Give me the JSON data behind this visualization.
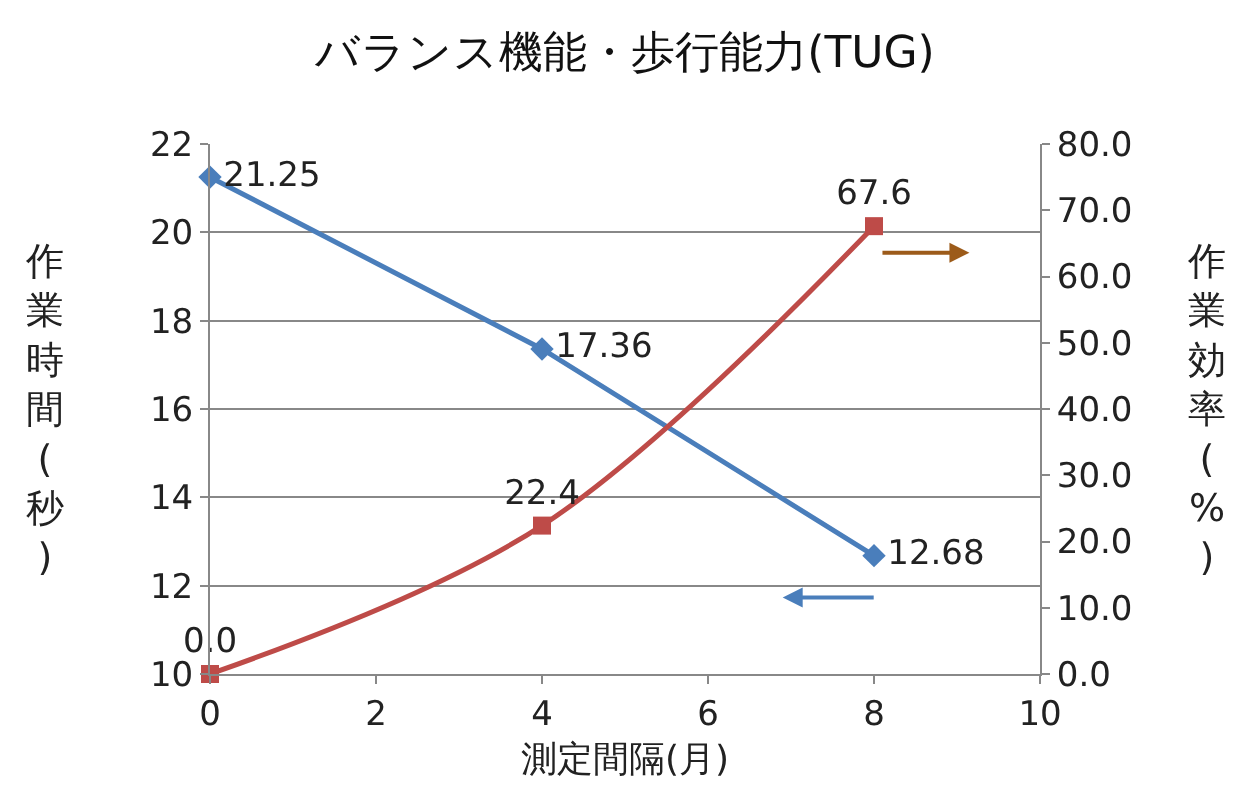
{
  "chart_data": {
    "type": "line",
    "title": "バランス機能・歩行能力(TUG)",
    "xlabel": "測定間隔(月)",
    "ylabel": "作業時間(秒)",
    "y2label": "作業効率(%)",
    "x": [
      0,
      4,
      8
    ],
    "xlim": [
      0,
      10
    ],
    "xticks": [
      0,
      2,
      4,
      6,
      8,
      10
    ],
    "ylim": [
      10,
      22
    ],
    "yticks": [
      10,
      12,
      14,
      16,
      18,
      20,
      22
    ],
    "y2lim": [
      0,
      80
    ],
    "y2ticks": [
      {
        "value": 0,
        "label": "0.0"
      },
      {
        "value": 10,
        "label": "10.0"
      },
      {
        "value": 20,
        "label": "20.0"
      },
      {
        "value": 30,
        "label": "30.0"
      },
      {
        "value": 40,
        "label": "40.0"
      },
      {
        "value": 50,
        "label": "50.0"
      },
      {
        "value": 60,
        "label": "60.0"
      },
      {
        "value": 70,
        "label": "70.0"
      },
      {
        "value": 80,
        "label": "80.0"
      }
    ],
    "series": [
      {
        "color": "#4a7ebb",
        "values": [
          21.25,
          17.36,
          12.68
        ],
        "value_labels": [
          "21.25",
          "17.36",
          "12.68"
        ],
        "marker": "diamond"
      },
      {
        "color": "#be4b48",
        "values": [
          0.0,
          22.4,
          67.6
        ],
        "value_labels": [
          "0.0",
          "22.4",
          "67.6"
        ],
        "marker": "square",
        "axis": "y2"
      }
    ],
    "grid": "y",
    "line_style": "solid"
  }
}
